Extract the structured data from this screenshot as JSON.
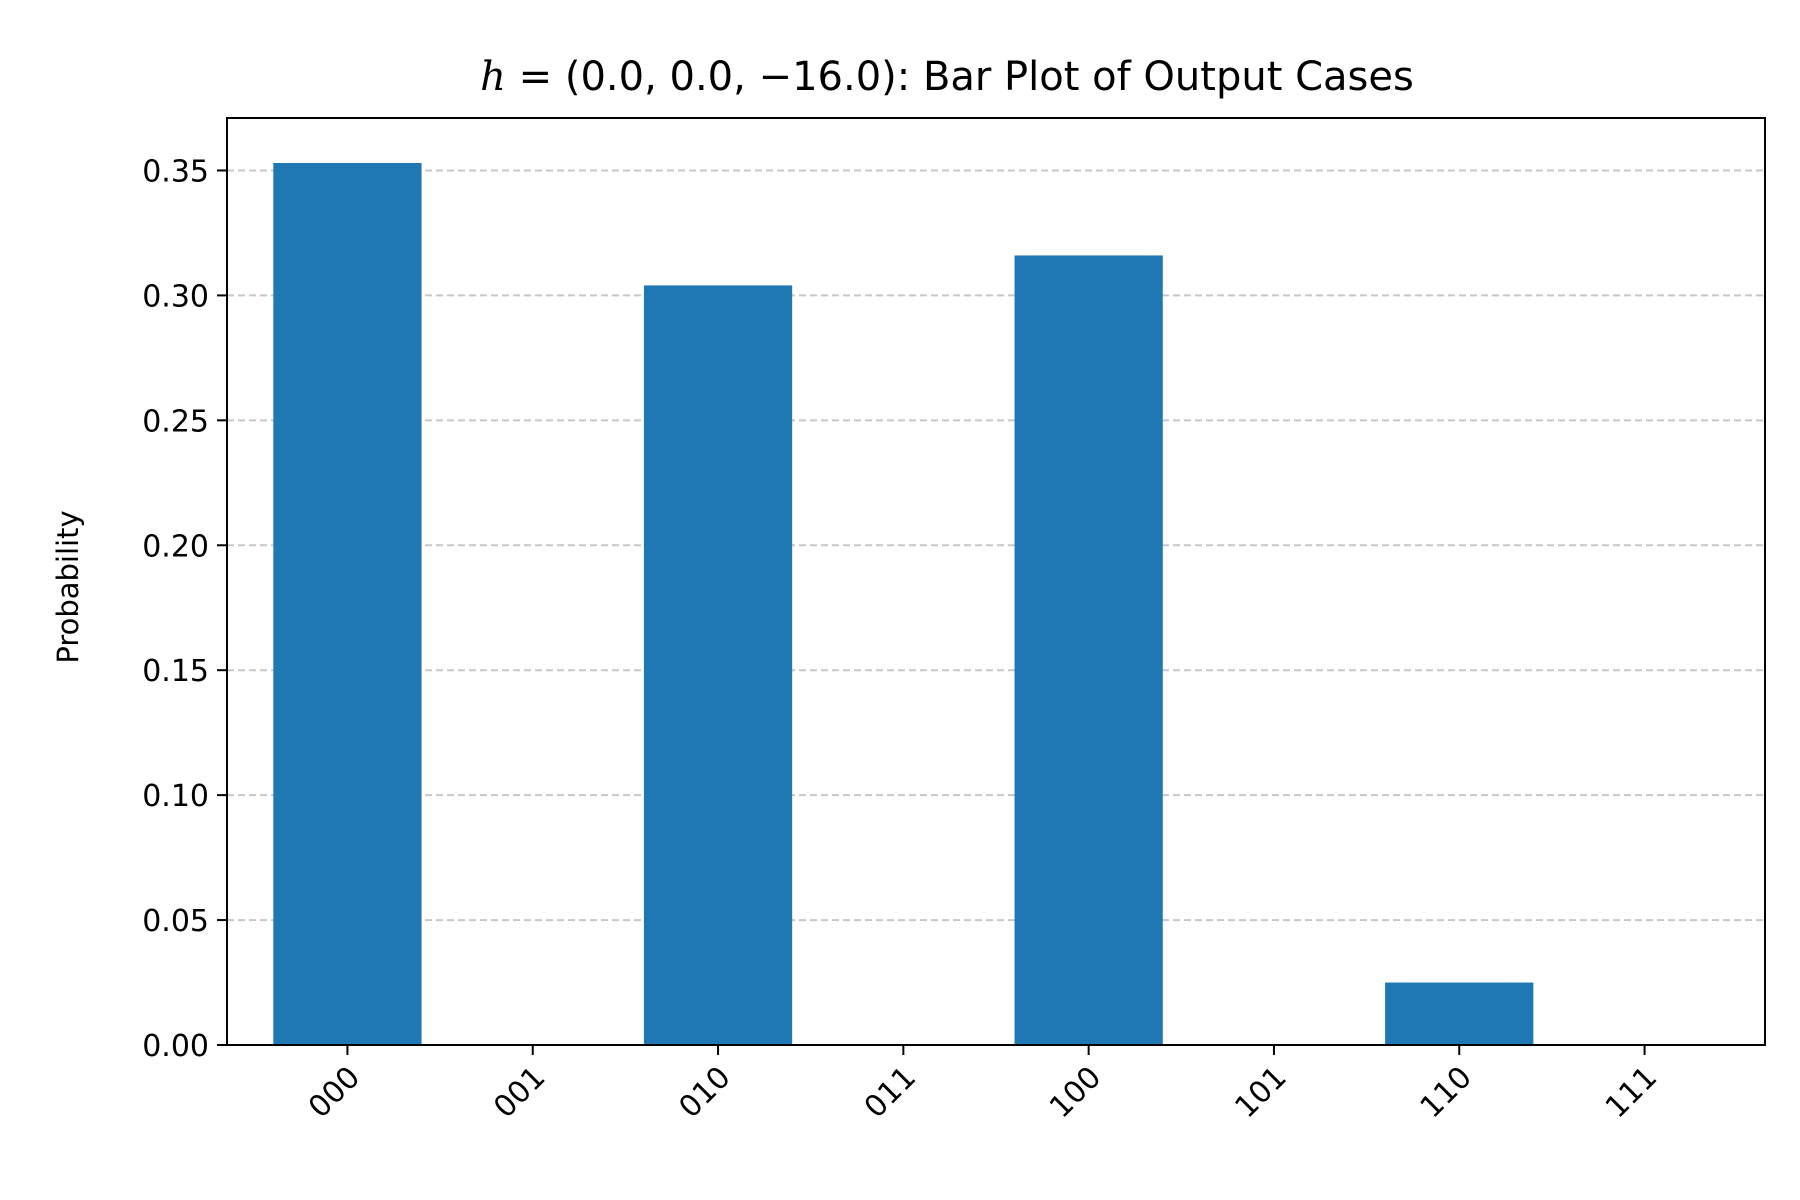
{
  "chart_data": {
    "type": "bar",
    "title_prefix": "h",
    "title_formula": " = (0.0, 0.0, −16.0)",
    "title_suffix": ": Bar Plot of Output Cases",
    "xlabel": "",
    "ylabel": "Probability",
    "categories": [
      "000",
      "001",
      "010",
      "011",
      "100",
      "101",
      "110",
      "111"
    ],
    "values": [
      0.353,
      0.0,
      0.304,
      0.0,
      0.316,
      0.0,
      0.025,
      0.0
    ],
    "ylim": [
      0,
      0.371
    ],
    "yticks": [
      0.0,
      0.05,
      0.1,
      0.15,
      0.2,
      0.25,
      0.3,
      0.35
    ],
    "ytick_labels": [
      "0.00",
      "0.05",
      "0.10",
      "0.15",
      "0.20",
      "0.25",
      "0.30",
      "0.35"
    ],
    "grid": "y-dashed",
    "bar_color": "#1f77b4",
    "grid_color": "#c8c8c8"
  }
}
